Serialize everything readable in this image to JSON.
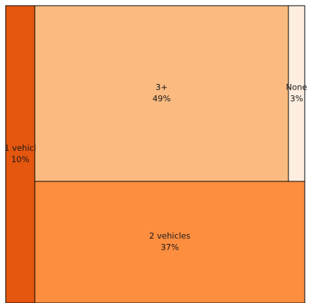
{
  "chart_data": {
    "type": "treemap",
    "title": "",
    "tiles": [
      {
        "name": "1 vehicl",
        "percent_label": "10%",
        "value": 10,
        "color": "#e5560e"
      },
      {
        "name": "3+",
        "percent_label": "49%",
        "value": 49,
        "color": "#fbbb80"
      },
      {
        "name": "None",
        "percent_label": "3%",
        "value": 3,
        "color": "#fdeee1"
      },
      {
        "name": "2 vehicles",
        "percent_label": "37%",
        "value": 37,
        "color": "#fd8e3f"
      }
    ],
    "border_color": "#000000"
  }
}
